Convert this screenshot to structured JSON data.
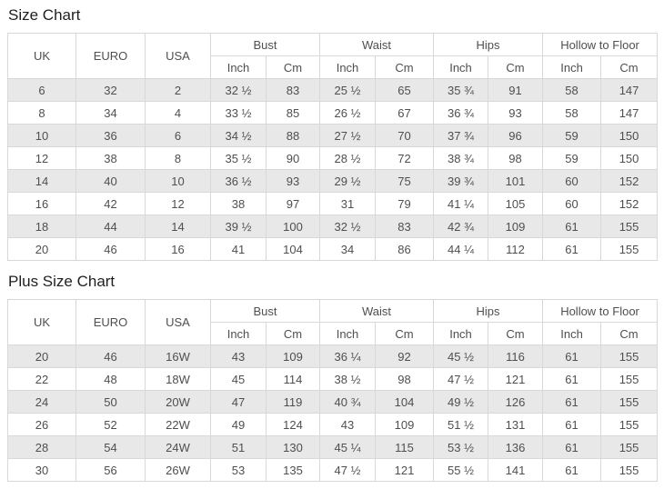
{
  "colors": {
    "stripe": "#e8e8e8",
    "border": "#d8d8d8",
    "text": "#4f4f4f",
    "title": "#1f1f1f",
    "background": "#ffffff"
  },
  "charts": [
    {
      "id": "size-chart",
      "title": "Size Chart",
      "column_headers": [
        "UK",
        "EURO",
        "USA"
      ],
      "measure_groups": [
        "Bust",
        "Waist",
        "Hips",
        "Hollow to Floor"
      ],
      "unit_headers": [
        "Inch",
        "Cm"
      ],
      "rows": [
        [
          "6",
          "32",
          "2",
          "32 ½",
          "83",
          "25 ½",
          "65",
          "35 ¾",
          "91",
          "58",
          "147"
        ],
        [
          "8",
          "34",
          "4",
          "33 ½",
          "85",
          "26 ½",
          "67",
          "36 ¾",
          "93",
          "58",
          "147"
        ],
        [
          "10",
          "36",
          "6",
          "34 ½",
          "88",
          "27 ½",
          "70",
          "37 ¾",
          "96",
          "59",
          "150"
        ],
        [
          "12",
          "38",
          "8",
          "35 ½",
          "90",
          "28 ½",
          "72",
          "38 ¾",
          "98",
          "59",
          "150"
        ],
        [
          "14",
          "40",
          "10",
          "36 ½",
          "93",
          "29 ½",
          "75",
          "39 ¾",
          "101",
          "60",
          "152"
        ],
        [
          "16",
          "42",
          "12",
          "38",
          "97",
          "31",
          "79",
          "41 ¼",
          "105",
          "60",
          "152"
        ],
        [
          "18",
          "44",
          "14",
          "39 ½",
          "100",
          "32 ½",
          "83",
          "42 ¾",
          "109",
          "61",
          "155"
        ],
        [
          "20",
          "46",
          "16",
          "41",
          "104",
          "34",
          "86",
          "44 ¼",
          "112",
          "61",
          "155"
        ]
      ]
    },
    {
      "id": "plus-size-chart",
      "title": "Plus Size Chart",
      "column_headers": [
        "UK",
        "EURO",
        "USA"
      ],
      "measure_groups": [
        "Bust",
        "Waist",
        "Hips",
        "Hollow to Floor"
      ],
      "unit_headers": [
        "Inch",
        "Cm"
      ],
      "rows": [
        [
          "20",
          "46",
          "16W",
          "43",
          "109",
          "36 ¼",
          "92",
          "45 ½",
          "116",
          "61",
          "155"
        ],
        [
          "22",
          "48",
          "18W",
          "45",
          "114",
          "38 ½",
          "98",
          "47 ½",
          "121",
          "61",
          "155"
        ],
        [
          "24",
          "50",
          "20W",
          "47",
          "119",
          "40 ¾",
          "104",
          "49 ½",
          "126",
          "61",
          "155"
        ],
        [
          "26",
          "52",
          "22W",
          "49",
          "124",
          "43",
          "109",
          "51 ½",
          "131",
          "61",
          "155"
        ],
        [
          "28",
          "54",
          "24W",
          "51",
          "130",
          "45 ¼",
          "115",
          "53 ½",
          "136",
          "61",
          "155"
        ],
        [
          "30",
          "56",
          "26W",
          "53",
          "135",
          "47 ½",
          "121",
          "55 ½",
          "141",
          "61",
          "155"
        ]
      ]
    }
  ]
}
